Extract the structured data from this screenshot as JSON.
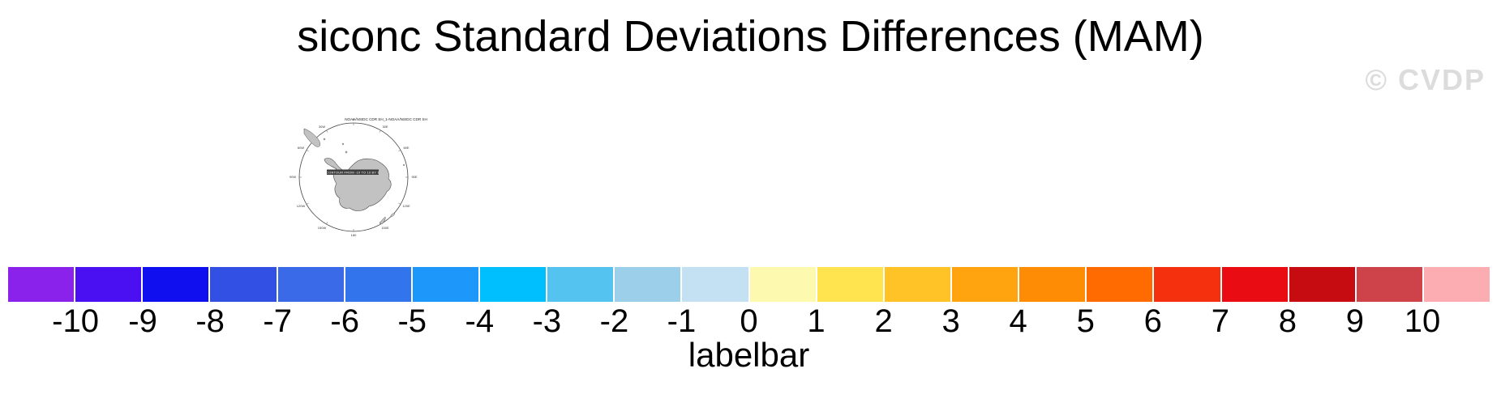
{
  "title": "siconc Standard Deviations Differences (MAM)",
  "watermark": "© CVDP",
  "map": {
    "label": "NOAA/NSIDC CDR SH_1-NOAA/NSIDC CDR SH",
    "info_strip": "CONTOUR FROM -10 TO 10 BY 1",
    "land_color": "#c2c2c2",
    "outline_color": "#4a4a4a",
    "lon_labels": [
      "0",
      "30E",
      "60E",
      "90E",
      "120E",
      "150E",
      "180",
      "150W",
      "120W",
      "90W",
      "60W",
      "30W"
    ]
  },
  "labelbar": {
    "caption": "labelbar",
    "ticks": [
      "-10",
      "-9",
      "-8",
      "-7",
      "-6",
      "-5",
      "-4",
      "-3",
      "-2",
      "-1",
      "0",
      "1",
      "2",
      "3",
      "4",
      "5",
      "6",
      "7",
      "8",
      "9",
      "10"
    ],
    "colors": [
      "#8b22ec",
      "#4a10f2",
      "#100fef",
      "#3350e5",
      "#3b6ae9",
      "#3274ec",
      "#1e97fa",
      "#00bfff",
      "#55c3f0",
      "#9ccfe9",
      "#c3e1f3",
      "#fdf9ae",
      "#ffe44f",
      "#ffc328",
      "#ffa30f",
      "#ff8c05",
      "#ff6b00",
      "#f5300f",
      "#e90c12",
      "#c60c10",
      "#ce434a",
      "#fbadb2"
    ]
  },
  "chart_data": {
    "type": "heatmap",
    "title": "siconc Standard Deviations Differences (MAM)",
    "variable": "siconc",
    "season": "MAM",
    "panel_label": "NOAA/NSIDC CDR SH_1-NOAA/NSIDC CDR SH",
    "projection": "southern-hemisphere polar stereographic (Antarctica centered)",
    "legend": {
      "caption": "labelbar",
      "orientation": "horizontal",
      "position": "bottom",
      "tick_values": [
        -10,
        -9,
        -8,
        -7,
        -6,
        -5,
        -4,
        -3,
        -2,
        -1,
        0,
        1,
        2,
        3,
        4,
        5,
        6,
        7,
        8,
        9,
        10
      ],
      "colors": [
        "#8b22ec",
        "#4a10f2",
        "#100fef",
        "#3350e5",
        "#3b6ae9",
        "#3274ec",
        "#1e97fa",
        "#00bfff",
        "#55c3f0",
        "#9ccfe9",
        "#c3e1f3",
        "#fdf9ae",
        "#ffe44f",
        "#ffc328",
        "#ffa30f",
        "#ff8c05",
        "#ff6b00",
        "#f5300f",
        "#e90c12",
        "#c60c10",
        "#ce434a",
        "#fbadb2"
      ]
    },
    "notes": "Single small SH polar map panel; color fill not visible at this scale (map mostly blank ocean with gray land)."
  }
}
